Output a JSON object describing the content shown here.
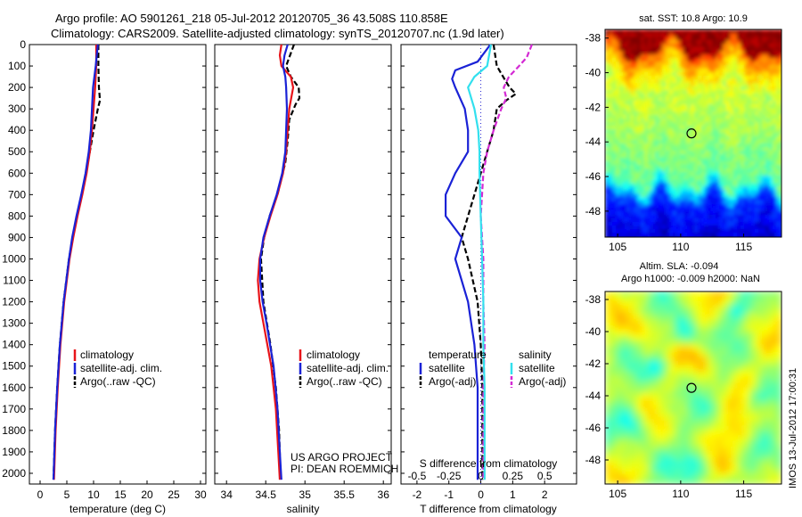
{
  "header": {
    "line1": "Argo profile: AO 5901261_218 05-Jul-2012 20120705_36 43.508S 110.858E",
    "line2": "Climatology: CARS2009. Satellite-adjusted climatology: synTS_20120707.nc (1.9d later)"
  },
  "colors": {
    "clim": "#e8141a",
    "sat": "#1a22d6",
    "argo": "#000000",
    "sat_s": "#33e0ee",
    "argo_s": "#d42ad4",
    "dotted": "#2a2ad0"
  },
  "panel_left": {
    "xlabel": "temperature (deg C)",
    "legend": [
      "climatology",
      "satellite-adj. clim.",
      "Argo(..raw -QC)"
    ]
  },
  "panel_mid": {
    "xlabel": "salinity",
    "legend": [
      "climatology",
      "satellite-adj. clim.",
      "Argo(..raw -QC)"
    ],
    "credit1": "US ARGO PROJECT",
    "credit2": "PI: DEAN ROEMMICH"
  },
  "panel_right": {
    "xlabel": "T difference from climatology",
    "xlabel_top": "S difference from climatology",
    "legend_t_title": "temperature",
    "legend_s_title": "salinity",
    "legend_t": [
      "satellite",
      "Argo(-adj)"
    ],
    "legend_s": [
      "satellite",
      "Argo(-adj)"
    ]
  },
  "map1": {
    "title": "sat. SST: 10.8 Argo: 10.9"
  },
  "map2": {
    "title1": "Altim. SLA: -0.094",
    "title2": "Argo h1000: -0.009 h2000: NaN"
  },
  "footer": {
    "imos": "IMOS 13-Jul-2012 17:00:31"
  },
  "chart_data": [
    {
      "type": "line",
      "xlabel": "temperature (deg C)",
      "ylabel": "",
      "xlim": [
        -2,
        31
      ],
      "ylim": [
        2050,
        0
      ],
      "xticks": [
        0,
        5,
        10,
        15,
        20,
        25,
        30
      ],
      "yticks": [
        0,
        100,
        200,
        300,
        400,
        500,
        600,
        700,
        800,
        900,
        1000,
        1100,
        1200,
        1300,
        1400,
        1500,
        1600,
        1700,
        1800,
        1900,
        2000
      ],
      "series": [
        {
          "name": "climatology",
          "style": "solid",
          "color": "#e8141a",
          "depth": [
            0,
            100,
            200,
            300,
            400,
            500,
            600,
            700,
            800,
            900,
            1000,
            1200,
            1400,
            1600,
            1800,
            2030
          ],
          "values": [
            10.5,
            10.5,
            10.3,
            10.0,
            9.7,
            9.3,
            8.7,
            7.9,
            7.0,
            6.2,
            5.5,
            4.5,
            3.8,
            3.3,
            2.9,
            2.6
          ]
        },
        {
          "name": "satellite-adj. clim.",
          "style": "solid",
          "color": "#1a22d6",
          "depth": [
            0,
            100,
            200,
            300,
            400,
            500,
            600,
            700,
            800,
            900,
            1000,
            1200,
            1400,
            1600,
            1800,
            2030
          ],
          "values": [
            10.8,
            10.4,
            9.9,
            9.7,
            9.5,
            9.1,
            8.5,
            7.7,
            6.8,
            6.0,
            5.4,
            4.4,
            3.7,
            3.2,
            2.8,
            2.5
          ]
        },
        {
          "name": "Argo(..raw -QC)",
          "style": "dashed",
          "color": "#000000",
          "depth": [
            0,
            100,
            200,
            260,
            300,
            400,
            500,
            600,
            700,
            800,
            900,
            1000,
            1200,
            1400,
            1600,
            1800,
            2030
          ],
          "values": [
            10.9,
            10.9,
            11.0,
            11.2,
            10.8,
            10.0,
            9.3,
            8.6,
            7.8,
            6.9,
            6.1,
            5.4,
            4.4,
            3.7,
            3.2,
            2.8,
            2.5
          ]
        }
      ]
    },
    {
      "type": "line",
      "xlabel": "salinity",
      "ylabel": "",
      "xlim": [
        33.85,
        36.1
      ],
      "ylim": [
        2050,
        0
      ],
      "xticks": [
        34,
        34.5,
        35,
        35.5,
        36
      ],
      "series": [
        {
          "name": "climatology",
          "style": "solid",
          "color": "#e8141a",
          "depth": [
            0,
            50,
            100,
            150,
            200,
            300,
            400,
            500,
            600,
            700,
            800,
            900,
            1000,
            1100,
            1200,
            1300,
            1500,
            1700,
            1900,
            2030
          ],
          "values": [
            34.7,
            34.68,
            34.7,
            34.82,
            34.85,
            34.8,
            34.78,
            34.76,
            34.72,
            34.65,
            34.56,
            34.48,
            34.42,
            34.4,
            34.42,
            34.47,
            34.57,
            34.63,
            34.66,
            34.68
          ]
        },
        {
          "name": "satellite-adj. clim.",
          "style": "solid",
          "color": "#1a22d6",
          "depth": [
            0,
            50,
            100,
            150,
            200,
            300,
            400,
            500,
            600,
            700,
            800,
            900,
            1000,
            1100,
            1200,
            1300,
            1500,
            1700,
            1900,
            2030
          ],
          "values": [
            34.78,
            34.74,
            34.72,
            34.75,
            34.76,
            34.77,
            34.76,
            34.75,
            34.71,
            34.64,
            34.55,
            34.47,
            34.43,
            34.43,
            34.46,
            34.51,
            34.6,
            34.65,
            34.68,
            34.7
          ]
        },
        {
          "name": "Argo(..raw -QC)",
          "style": "dashed",
          "color": "#000000",
          "depth": [
            0,
            60,
            100,
            150,
            200,
            250,
            280,
            350,
            450,
            550,
            700,
            800,
            900,
            1000,
            1200,
            1400,
            1600,
            1800,
            2030
          ],
          "values": [
            34.86,
            34.8,
            34.76,
            34.82,
            34.92,
            34.93,
            34.88,
            34.8,
            34.78,
            34.75,
            34.65,
            34.55,
            34.48,
            34.44,
            34.47,
            34.56,
            34.63,
            34.67,
            34.69
          ]
        }
      ]
    },
    {
      "type": "line",
      "xlabel": "T difference from climatology",
      "x2label": "S difference from climatology",
      "xlim": [
        -2.5,
        3.0
      ],
      "ylim": [
        2050,
        0
      ],
      "xticks": [
        -2,
        -1,
        0,
        1,
        2
      ],
      "x2lim": [
        -0.625,
        0.75
      ],
      "x2ticks": [
        -0.5,
        -0.25,
        0,
        0.25,
        0.5
      ],
      "series": [
        {
          "name": "satellite",
          "group": "temperature",
          "style": "solid",
          "color": "#1a22d6",
          "depth": [
            0,
            80,
            120,
            160,
            200,
            300,
            400,
            500,
            600,
            700,
            800,
            900,
            1000,
            1200,
            1400,
            1600,
            1800,
            2030
          ],
          "values": [
            0.3,
            -0.1,
            -0.8,
            -0.9,
            -0.8,
            -0.5,
            -0.4,
            -0.4,
            -0.8,
            -1.1,
            -1.1,
            -0.6,
            -0.8,
            -0.4,
            -0.2,
            -0.1,
            -0.1,
            -0.1
          ]
        },
        {
          "name": "Argo(-adj)",
          "group": "temperature",
          "style": "dashed",
          "color": "#000000",
          "depth": [
            0,
            100,
            150,
            200,
            230,
            260,
            300,
            400,
            500,
            600,
            700,
            800,
            900,
            1000,
            1200,
            1400,
            1600,
            1800,
            2030
          ],
          "values": [
            0.4,
            0.5,
            0.7,
            0.9,
            1.1,
            0.8,
            0.5,
            0.4,
            0.2,
            0.0,
            -0.2,
            -0.4,
            -0.6,
            -0.4,
            -0.1,
            0.0,
            0.05,
            0.05,
            0.05
          ]
        },
        {
          "name": "satellite",
          "group": "salinity",
          "style": "solid",
          "color": "#33e0ee",
          "depth": [
            0,
            100,
            150,
            200,
            300,
            400,
            500,
            600,
            800,
            1000,
            1200,
            1400,
            1600,
            1800,
            2030
          ],
          "values": [
            0.08,
            0.05,
            -0.05,
            -0.1,
            -0.05,
            -0.02,
            -0.01,
            -0.01,
            0.0,
            0.01,
            0.02,
            0.02,
            0.03,
            0.03,
            0.03
          ]
        },
        {
          "name": "Argo(-adj)",
          "group": "salinity",
          "style": "dashed",
          "color": "#d42ad4",
          "depth": [
            0,
            60,
            100,
            150,
            200,
            250,
            300,
            400,
            500,
            600,
            800,
            1000,
            1200,
            1400,
            1600,
            1800,
            2030
          ],
          "values": [
            0.4,
            0.36,
            0.3,
            0.22,
            0.18,
            0.2,
            0.16,
            0.1,
            0.05,
            0.02,
            0.0,
            0.02,
            0.02,
            0.03,
            0.02,
            0.02,
            0.02
          ]
        }
      ]
    },
    {
      "type": "heatmap",
      "title": "sat. SST: 10.8 Argo: 10.9",
      "xlim": [
        104,
        118
      ],
      "ylim": [
        -49.5,
        -37.5
      ],
      "xticks": [
        105,
        110,
        115
      ],
      "yticks": [
        -38,
        -40,
        -42,
        -44,
        -46,
        -48
      ],
      "marker": {
        "lon": 110.858,
        "lat": -43.508
      }
    },
    {
      "type": "heatmap",
      "title": "Altim. SLA: -0.094",
      "xlim": [
        104,
        118
      ],
      "ylim": [
        -49.5,
        -37.5
      ],
      "xticks": [
        105,
        110,
        115
      ],
      "yticks": [
        -38,
        -40,
        -42,
        -44,
        -46,
        -48
      ],
      "marker": {
        "lon": 110.858,
        "lat": -43.508
      }
    }
  ]
}
